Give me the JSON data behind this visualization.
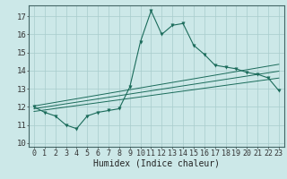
{
  "title": "",
  "xlabel": "Humidex (Indice chaleur)",
  "bg_color": "#cce8e8",
  "line_color": "#1a6b5a",
  "xlim": [
    -0.5,
    23.5
  ],
  "ylim": [
    9.8,
    17.6
  ],
  "yticks": [
    10,
    11,
    12,
    13,
    14,
    15,
    16,
    17
  ],
  "xticks": [
    0,
    1,
    2,
    3,
    4,
    5,
    6,
    7,
    8,
    9,
    10,
    11,
    12,
    13,
    14,
    15,
    16,
    17,
    18,
    19,
    20,
    21,
    22,
    23
  ],
  "main_y": [
    12.0,
    11.7,
    11.5,
    11.0,
    10.8,
    11.5,
    11.7,
    11.8,
    11.9,
    13.1,
    15.6,
    17.3,
    16.0,
    16.5,
    16.6,
    15.4,
    14.9,
    14.3,
    14.2,
    14.1,
    13.9,
    13.8,
    13.6,
    12.9
  ],
  "reg_lower_y": [
    11.75,
    11.83,
    11.91,
    11.99,
    12.07,
    12.15,
    12.23,
    12.31,
    12.39,
    12.47,
    12.55,
    12.63,
    12.71,
    12.79,
    12.87,
    12.95,
    13.03,
    13.11,
    13.19,
    13.27,
    13.35,
    13.43,
    13.51,
    13.59
  ],
  "reg_mid_y": [
    11.9,
    11.99,
    12.08,
    12.17,
    12.26,
    12.35,
    12.44,
    12.53,
    12.62,
    12.71,
    12.8,
    12.89,
    12.98,
    13.07,
    13.16,
    13.25,
    13.34,
    13.43,
    13.52,
    13.61,
    13.7,
    13.79,
    13.88,
    13.97
  ],
  "reg_upper_y": [
    12.05,
    12.15,
    12.25,
    12.35,
    12.45,
    12.55,
    12.65,
    12.75,
    12.85,
    12.95,
    13.05,
    13.15,
    13.25,
    13.35,
    13.45,
    13.55,
    13.65,
    13.75,
    13.85,
    13.95,
    14.05,
    14.15,
    14.25,
    14.35
  ],
  "tick_fontsize": 6,
  "xlabel_fontsize": 7,
  "grid_color": "#a8cccc",
  "spine_color": "#446666"
}
